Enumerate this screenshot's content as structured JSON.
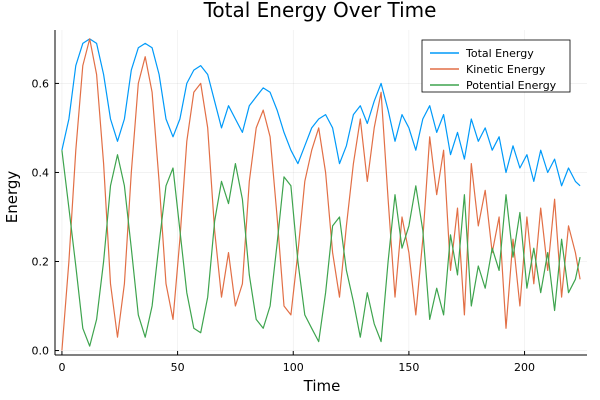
{
  "chart_data": {
    "type": "line",
    "title": "Total Energy Over Time",
    "xlabel": "Time",
    "ylabel": "Energy",
    "xlim": [
      -3,
      227
    ],
    "ylim": [
      -0.01,
      0.72
    ],
    "xticks": [
      0,
      50,
      100,
      150,
      200
    ],
    "yticks": [
      0.0,
      0.2,
      0.4,
      0.6
    ],
    "xtick_labels": [
      "0",
      "50",
      "100",
      "150",
      "200"
    ],
    "ytick_labels": [
      "0.0",
      "0.2",
      "0.4",
      "0.6"
    ],
    "grid": true,
    "legend": {
      "position": "top-right"
    },
    "series": [
      {
        "name": "Total Energy",
        "color": "#009af9",
        "x": [
          0,
          3,
          6,
          9,
          12,
          15,
          18,
          21,
          24,
          27,
          30,
          33,
          36,
          39,
          42,
          45,
          48,
          51,
          54,
          57,
          60,
          63,
          66,
          69,
          72,
          75,
          78,
          81,
          84,
          87,
          90,
          93,
          96,
          99,
          102,
          105,
          108,
          111,
          114,
          117,
          120,
          123,
          126,
          129,
          132,
          135,
          138,
          141,
          144,
          147,
          150,
          153,
          156,
          159,
          162,
          165,
          168,
          171,
          174,
          177,
          180,
          183,
          186,
          189,
          192,
          195,
          198,
          201,
          204,
          207,
          210,
          213,
          216,
          219,
          222,
          224
        ],
        "y": [
          0.45,
          0.52,
          0.64,
          0.69,
          0.7,
          0.69,
          0.62,
          0.52,
          0.47,
          0.52,
          0.63,
          0.68,
          0.69,
          0.68,
          0.62,
          0.52,
          0.48,
          0.52,
          0.6,
          0.63,
          0.64,
          0.62,
          0.56,
          0.5,
          0.55,
          0.52,
          0.49,
          0.55,
          0.57,
          0.59,
          0.58,
          0.54,
          0.49,
          0.45,
          0.42,
          0.46,
          0.5,
          0.52,
          0.53,
          0.5,
          0.42,
          0.46,
          0.53,
          0.55,
          0.51,
          0.56,
          0.6,
          0.54,
          0.47,
          0.53,
          0.5,
          0.45,
          0.52,
          0.55,
          0.49,
          0.53,
          0.44,
          0.49,
          0.43,
          0.52,
          0.47,
          0.5,
          0.45,
          0.48,
          0.4,
          0.46,
          0.41,
          0.44,
          0.38,
          0.45,
          0.4,
          0.43,
          0.37,
          0.41,
          0.38,
          0.37
        ]
      },
      {
        "name": "Kinetic Energy",
        "color": "#e26f46",
        "x": [
          0,
          3,
          6,
          9,
          12,
          15,
          18,
          21,
          24,
          27,
          30,
          33,
          36,
          39,
          42,
          45,
          48,
          51,
          54,
          57,
          60,
          63,
          66,
          69,
          72,
          75,
          78,
          81,
          84,
          87,
          90,
          93,
          96,
          99,
          102,
          105,
          108,
          111,
          114,
          117,
          120,
          123,
          126,
          129,
          132,
          135,
          138,
          141,
          144,
          147,
          150,
          153,
          156,
          159,
          162,
          165,
          168,
          171,
          174,
          177,
          180,
          183,
          186,
          189,
          192,
          195,
          198,
          201,
          204,
          207,
          210,
          213,
          216,
          219,
          222,
          224
        ],
        "y": [
          0.0,
          0.2,
          0.45,
          0.64,
          0.7,
          0.62,
          0.42,
          0.15,
          0.03,
          0.15,
          0.4,
          0.6,
          0.66,
          0.58,
          0.38,
          0.15,
          0.07,
          0.25,
          0.47,
          0.58,
          0.6,
          0.5,
          0.27,
          0.12,
          0.22,
          0.1,
          0.15,
          0.38,
          0.5,
          0.54,
          0.48,
          0.3,
          0.1,
          0.08,
          0.22,
          0.38,
          0.45,
          0.5,
          0.4,
          0.22,
          0.12,
          0.28,
          0.42,
          0.52,
          0.38,
          0.5,
          0.58,
          0.34,
          0.12,
          0.3,
          0.22,
          0.08,
          0.25,
          0.48,
          0.35,
          0.45,
          0.18,
          0.32,
          0.08,
          0.42,
          0.28,
          0.36,
          0.22,
          0.3,
          0.05,
          0.25,
          0.1,
          0.3,
          0.15,
          0.32,
          0.18,
          0.34,
          0.12,
          0.28,
          0.22,
          0.16
        ]
      },
      {
        "name": "Potential Energy",
        "color": "#3ea44e",
        "x": [
          0,
          3,
          6,
          9,
          12,
          15,
          18,
          21,
          24,
          27,
          30,
          33,
          36,
          39,
          42,
          45,
          48,
          51,
          54,
          57,
          60,
          63,
          66,
          69,
          72,
          75,
          78,
          81,
          84,
          87,
          90,
          93,
          96,
          99,
          102,
          105,
          108,
          111,
          114,
          117,
          120,
          123,
          126,
          129,
          132,
          135,
          138,
          141,
          144,
          147,
          150,
          153,
          156,
          159,
          162,
          165,
          168,
          171,
          174,
          177,
          180,
          183,
          186,
          189,
          192,
          195,
          198,
          201,
          204,
          207,
          210,
          213,
          216,
          219,
          222,
          224
        ],
        "y": [
          0.45,
          0.32,
          0.19,
          0.05,
          0.01,
          0.07,
          0.2,
          0.37,
          0.44,
          0.37,
          0.23,
          0.08,
          0.03,
          0.1,
          0.24,
          0.37,
          0.41,
          0.27,
          0.13,
          0.05,
          0.04,
          0.12,
          0.29,
          0.38,
          0.33,
          0.42,
          0.34,
          0.17,
          0.07,
          0.05,
          0.1,
          0.24,
          0.39,
          0.37,
          0.2,
          0.08,
          0.05,
          0.02,
          0.13,
          0.28,
          0.3,
          0.18,
          0.11,
          0.03,
          0.13,
          0.06,
          0.02,
          0.2,
          0.35,
          0.23,
          0.28,
          0.37,
          0.27,
          0.07,
          0.14,
          0.08,
          0.26,
          0.17,
          0.35,
          0.1,
          0.19,
          0.14,
          0.23,
          0.18,
          0.35,
          0.21,
          0.31,
          0.14,
          0.23,
          0.13,
          0.22,
          0.09,
          0.25,
          0.13,
          0.16,
          0.21
        ]
      }
    ]
  }
}
